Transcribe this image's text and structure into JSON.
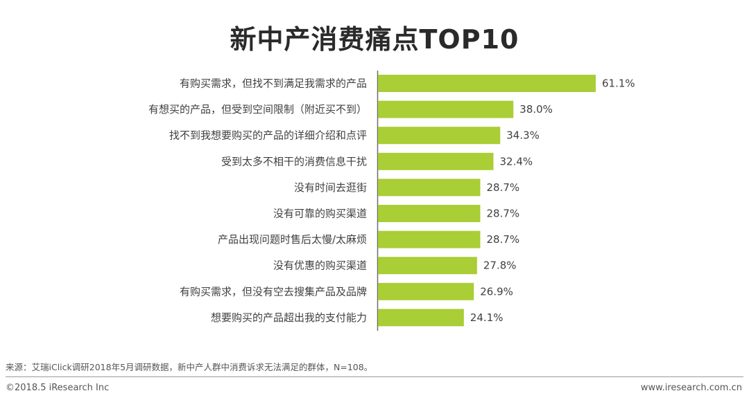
{
  "chart_data": {
    "type": "bar",
    "orientation": "horizontal",
    "title": "新中产消费痛点TOP10",
    "categories": [
      "有购买需求，但找不到满足我需求的产品",
      "有想买的产品，但受到空间限制（附近买不到）",
      "找不到我想要购买的产品的详细介绍和点评",
      "受到太多不相干的消费信息干扰",
      "没有时间去逛街",
      "没有可靠的购买渠道",
      "产品出现问题时售后太慢/太麻烦",
      "没有优惠的购买渠道",
      "有购买需求，但没有空去搜集产品及品牌",
      "想要购买的产品超出我的支付能力"
    ],
    "values": [
      61.1,
      38.0,
      34.3,
      32.4,
      28.7,
      28.7,
      28.7,
      27.8,
      26.9,
      24.1
    ],
    "value_labels": [
      "61.1%",
      "38.0%",
      "34.3%",
      "32.4%",
      "28.7%",
      "28.7%",
      "28.7%",
      "27.8%",
      "26.9%",
      "24.1%"
    ],
    "unit": "%",
    "xlim": [
      0,
      61.1
    ],
    "grid": false,
    "legend": "none",
    "bar_color": "#a9ce36",
    "axis_color": "#6e6e6e"
  },
  "source_note": "来源：艾瑞iClick调研2018年5月调研数据，新中产人群中消费诉求无法满足的群体，N=108。",
  "copyright": "©2018.5 iResearch Inc",
  "website": "www.iresearch.com.cn"
}
